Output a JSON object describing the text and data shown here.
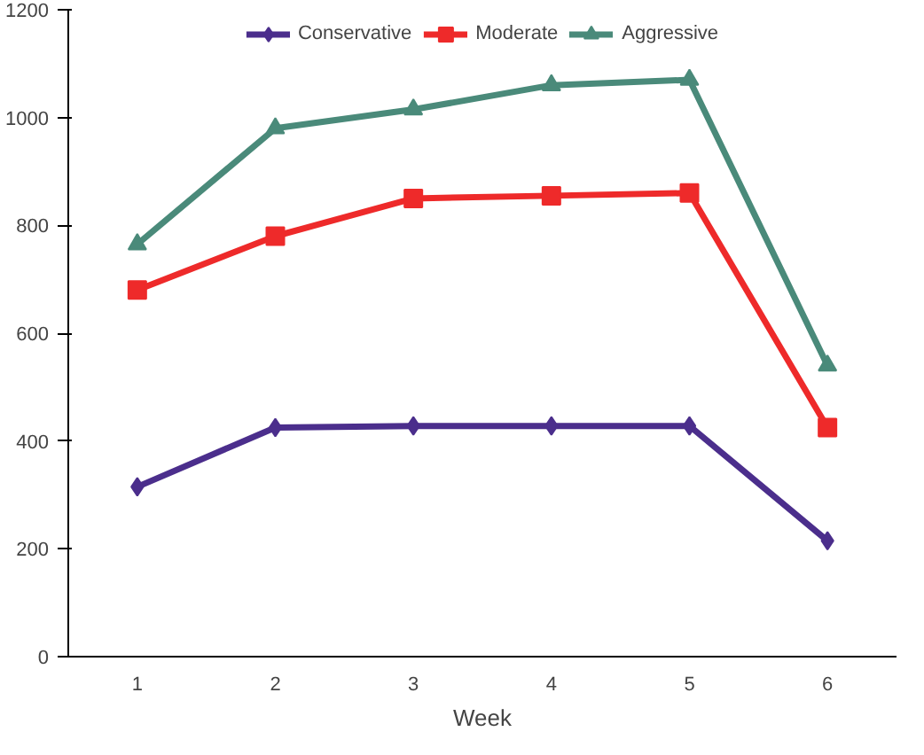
{
  "chart_data": {
    "type": "line",
    "xlabel": "Week",
    "categories": [
      "1",
      "2",
      "3",
      "4",
      "5",
      "6"
    ],
    "series": [
      {
        "name": "Conservative",
        "color": "#4b2e8c",
        "marker": "diamond",
        "values": [
          315,
          425,
          428,
          428,
          428,
          215
        ]
      },
      {
        "name": "Moderate",
        "color": "#ee2a2a",
        "marker": "square",
        "values": [
          680,
          780,
          850,
          855,
          860,
          425
        ]
      },
      {
        "name": "Aggressive",
        "color": "#4a8a7a",
        "marker": "triangle",
        "values": [
          765,
          980,
          1015,
          1060,
          1070,
          540
        ]
      }
    ],
    "ylim": [
      0,
      1200
    ],
    "yticks": [
      0,
      200,
      400,
      600,
      800,
      1000,
      1200
    ],
    "grid": false,
    "legend": "top"
  }
}
